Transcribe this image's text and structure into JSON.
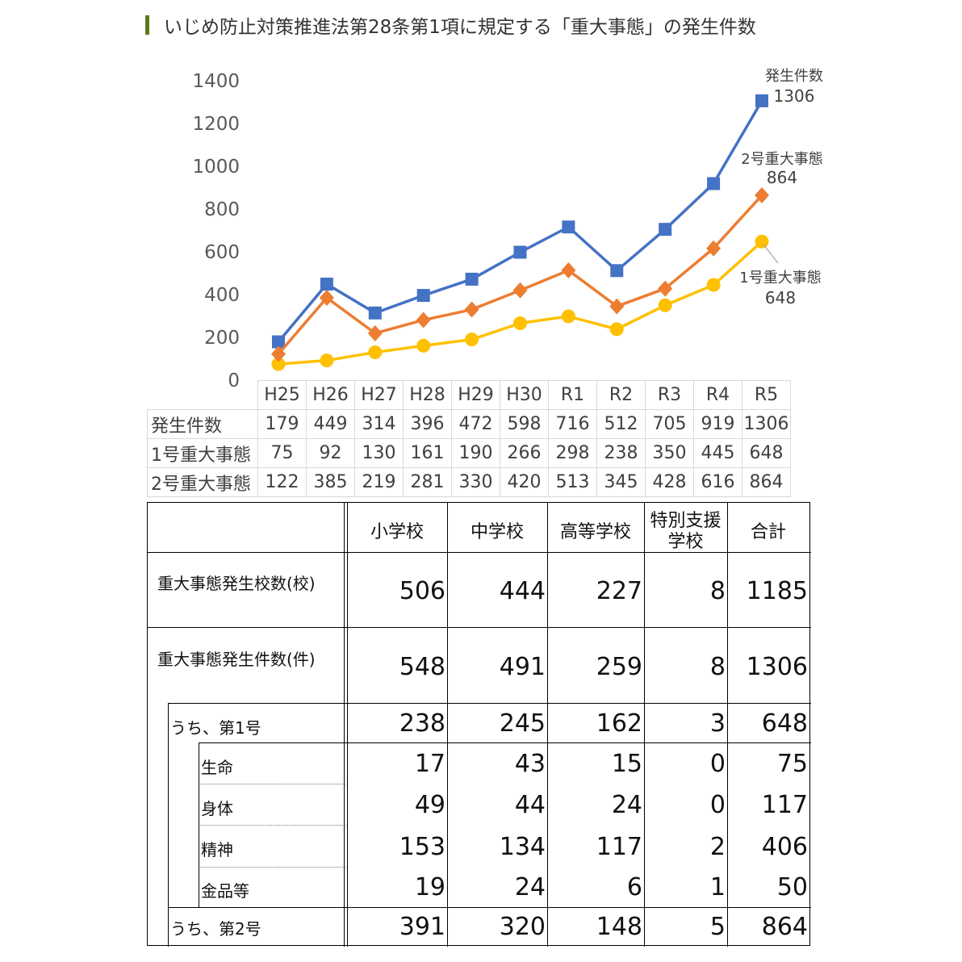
{
  "title": "いじめ防止対策推進法第28条第1項に規定する「重大事態」の発生件数",
  "chart_data": {
    "type": "line",
    "categories": [
      "H25",
      "H26",
      "H27",
      "H28",
      "H29",
      "H30",
      "R1",
      "R2",
      "R3",
      "R4",
      "R5"
    ],
    "ylim": [
      0,
      1400
    ],
    "yticks": [
      "0",
      "200",
      "400",
      "600",
      "800",
      "1000",
      "1200",
      "1400"
    ],
    "series": [
      {
        "name": "発生件数",
        "color": "#4472c4",
        "marker": "square",
        "values": [
          179,
          449,
          314,
          396,
          472,
          598,
          716,
          512,
          705,
          919,
          1306
        ]
      },
      {
        "name": "1号重大事態",
        "color": "#ffc000",
        "marker": "circle",
        "values": [
          75,
          92,
          130,
          161,
          190,
          266,
          298,
          238,
          350,
          445,
          648
        ]
      },
      {
        "name": "2号重大事態",
        "color": "#ed7d31",
        "marker": "diamond",
        "values": [
          122,
          385,
          219,
          281,
          330,
          420,
          513,
          345,
          428,
          616,
          864
        ]
      }
    ],
    "annotations": [
      {
        "series": "発生件数",
        "name_text": "発生件数",
        "value_text": "1306"
      },
      {
        "series": "2号重大事態",
        "name_text": "2号重大事態",
        "value_text": "864"
      },
      {
        "series": "1号重大事態",
        "name_text": "1号重大事態",
        "value_text": "648"
      }
    ]
  },
  "data_table": {
    "rows": [
      {
        "label": "発生件数",
        "values": [
          "179",
          "449",
          "314",
          "396",
          "472",
          "598",
          "716",
          "512",
          "705",
          "919",
          "1306"
        ]
      },
      {
        "label": "1号重大事態",
        "values": [
          "75",
          "92",
          "130",
          "161",
          "190",
          "266",
          "298",
          "238",
          "350",
          "445",
          "648"
        ]
      },
      {
        "label": "2号重大事態",
        "values": [
          "122",
          "385",
          "219",
          "281",
          "330",
          "420",
          "513",
          "345",
          "428",
          "616",
          "864"
        ]
      }
    ]
  },
  "summary_table": {
    "headers": [
      "小学校",
      "中学校",
      "高等学校",
      "特別支援学校",
      "合計"
    ],
    "header_lines": [
      [
        "小学校"
      ],
      [
        "中学校"
      ],
      [
        "高等学校"
      ],
      [
        "特別支援",
        "学校"
      ],
      [
        "合計"
      ]
    ],
    "rows": [
      {
        "label": "重大事態発生校数(校)",
        "values": [
          "506",
          "444",
          "227",
          "8",
          "1185"
        ]
      },
      {
        "label": "重大事態発生件数(件)",
        "values": [
          "548",
          "491",
          "259",
          "8",
          "1306"
        ]
      },
      {
        "label": "うち、第1号",
        "values": [
          "238",
          "245",
          "162",
          "3",
          "648"
        ]
      },
      {
        "label": "生命",
        "values": [
          "17",
          "43",
          "15",
          "0",
          "75"
        ]
      },
      {
        "label": "身体",
        "values": [
          "49",
          "44",
          "24",
          "0",
          "117"
        ]
      },
      {
        "label": "精神",
        "values": [
          "153",
          "134",
          "117",
          "2",
          "406"
        ]
      },
      {
        "label": "金品等",
        "values": [
          "19",
          "24",
          "6",
          "1",
          "50"
        ]
      },
      {
        "label": "うち、第2号",
        "values": [
          "391",
          "320",
          "148",
          "5",
          "864"
        ]
      }
    ]
  }
}
